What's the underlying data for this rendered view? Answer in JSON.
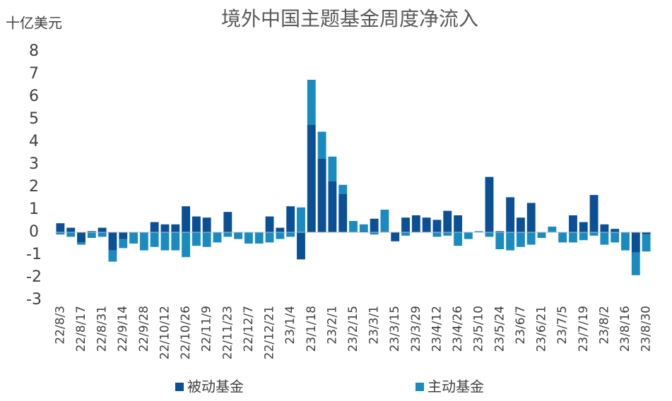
{
  "chart_data": {
    "type": "stacked_bar",
    "title": "境外中国主题基金周度净流入",
    "y_label": "十亿美元",
    "categories": [
      "22/8/3",
      null,
      "22/8/17",
      null,
      "22/8/31",
      null,
      "22/9/14",
      null,
      "22/9/28",
      null,
      "22/10/12",
      null,
      "22/10/26",
      null,
      "22/11/9",
      null,
      "22/11/23",
      null,
      "22/12/7",
      null,
      "22/12/21",
      null,
      "23/1/4",
      null,
      "23/1/18",
      null,
      "23/2/1",
      null,
      "23/2/15",
      null,
      "23/3/1",
      null,
      "23/3/15",
      null,
      "23/3/29",
      null,
      "23/4/12",
      null,
      "23/4/26",
      null,
      "23/5/10",
      null,
      "23/5/24",
      null,
      "23/6/7",
      null,
      "23/6/21",
      null,
      "23/7/5",
      null,
      "23/7/19",
      null,
      "23/8/2",
      null,
      "23/8/16",
      null,
      "23/8/30"
    ],
    "series": [
      {
        "name": "被动基金",
        "color": "#0b4f94",
        "values": [
          0.4,
          0.2,
          -0.45,
          0.05,
          0.2,
          -0.8,
          -0.3,
          0,
          0,
          0.45,
          0.35,
          0.35,
          1.15,
          0.7,
          0.65,
          0,
          0.9,
          0,
          0,
          0,
          0.7,
          0.2,
          1.15,
          -1.2,
          4.75,
          3.25,
          2.25,
          1.7,
          0,
          0.05,
          0.6,
          0,
          -0.4,
          0.65,
          0.75,
          0.65,
          0.55,
          0.95,
          0.75,
          0,
          0,
          2.45,
          0.05,
          1.55,
          0.65,
          1.3,
          0,
          0,
          0,
          0.75,
          0.45,
          1.65,
          0.35,
          0.15,
          0,
          -0.9,
          -0.1
        ]
      },
      {
        "name": "主动基金",
        "color": "#1a8bc1",
        "values": [
          -0.1,
          -0.2,
          -0.1,
          -0.25,
          -0.2,
          -0.5,
          -0.4,
          -0.5,
          -0.8,
          -0.65,
          -0.8,
          -0.8,
          -1.1,
          -0.6,
          -0.65,
          -0.45,
          -0.2,
          -0.3,
          -0.5,
          -0.5,
          -0.45,
          -0.3,
          -0.2,
          1.1,
          2.0,
          1.2,
          1.1,
          0.4,
          0.5,
          0.3,
          -0.1,
          1.0,
          0,
          -0.15,
          0,
          0,
          -0.2,
          -0.15,
          -0.6,
          -0.3,
          0.05,
          -0.2,
          -0.75,
          -0.8,
          -0.65,
          -0.55,
          -0.25,
          0.25,
          -0.45,
          -0.45,
          -0.35,
          -0.15,
          -0.55,
          -0.45,
          -0.8,
          -1.0,
          -0.75
        ]
      }
    ],
    "ylim": [
      -3,
      8
    ],
    "yticks": [
      -3,
      -2,
      -1,
      0,
      1,
      2,
      3,
      4,
      5,
      6,
      7,
      8
    ],
    "legend": "bottom"
  }
}
